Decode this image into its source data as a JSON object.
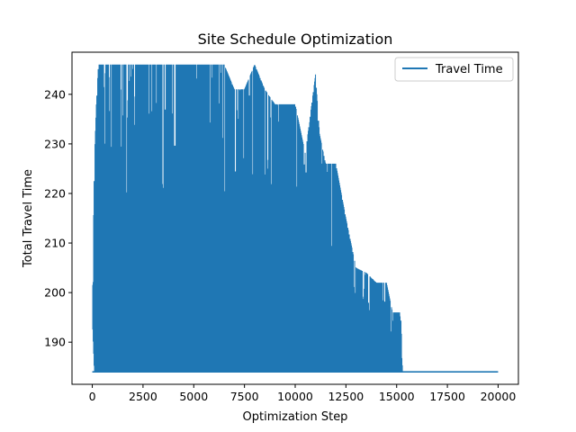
{
  "chart_data": {
    "type": "line",
    "title": "Site Schedule Optimization",
    "xlabel": "Optimization Step",
    "ylabel": "Total Travel Time",
    "xlim": [
      -1000,
      21000
    ],
    "ylim": [
      181.5,
      248.5
    ],
    "x_ticks": [
      0,
      2500,
      5000,
      7500,
      10000,
      12500,
      15000,
      17500,
      20000
    ],
    "y_ticks": [
      190,
      200,
      210,
      220,
      230,
      240
    ],
    "grid": false,
    "legend_position": "top-right",
    "series_color": "#1f77b4",
    "series": [
      {
        "name": "Travel Time",
        "envelope_description": "rapidly oscillating values; per-step upper and lower bounds listed",
        "x": [
          0,
          100,
          200,
          300,
          500,
          1000,
          1500,
          2000,
          2500,
          3000,
          3500,
          4000,
          4500,
          5000,
          5500,
          6000,
          6500,
          7000,
          7500,
          8000,
          8500,
          9000,
          9500,
          10000,
          10500,
          11000,
          11200,
          11500,
          12000,
          12500,
          13000,
          13500,
          14000,
          14500,
          14800,
          15000,
          15200,
          15300,
          17500,
          20000
        ],
        "upper": [
          195,
          226,
          238,
          246,
          246,
          246,
          246,
          246,
          246,
          246,
          246,
          246,
          246,
          246,
          246,
          246,
          246,
          241,
          241,
          246,
          241,
          238,
          238,
          238,
          228,
          244,
          232,
          226,
          226,
          215,
          205,
          204,
          202,
          202,
          196,
          196,
          196,
          184,
          184,
          184
        ],
        "lower": [
          195,
          184,
          184,
          184,
          184,
          184,
          184,
          184,
          184,
          184,
          184,
          184,
          184,
          184,
          184,
          184,
          184,
          184,
          184,
          184,
          184,
          184,
          184,
          184,
          184,
          184,
          184,
          184,
          184,
          184,
          184,
          184,
          184,
          184,
          184,
          184,
          184,
          184,
          184,
          184
        ],
        "final_value": 184
      }
    ]
  }
}
